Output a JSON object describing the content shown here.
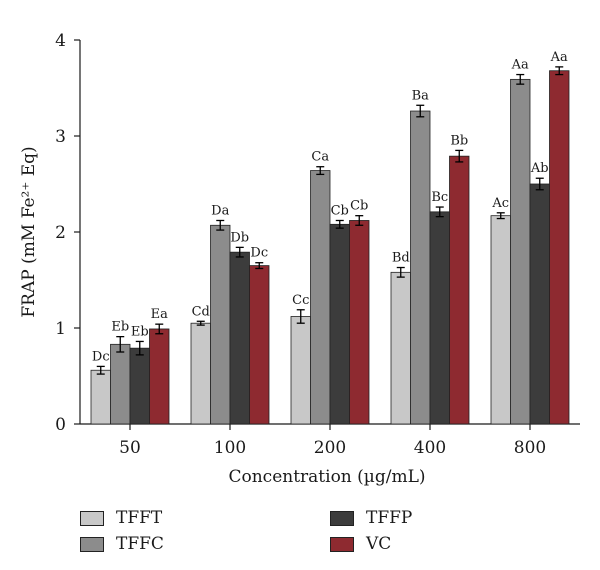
{
  "chart_data": {
    "type": "bar",
    "xlabel": "Concentration (µg/mL)",
    "ylabel": "FRAP (mM Fe²⁺ Eq)",
    "ylim": [
      0,
      4
    ],
    "yticks": [
      0,
      1,
      2,
      3,
      4
    ],
    "categories": [
      "50",
      "100",
      "200",
      "400",
      "800"
    ],
    "series": [
      {
        "name": "TFFT",
        "color": "#c8c8c8",
        "values": [
          0.56,
          1.05,
          1.12,
          1.58,
          2.17
        ],
        "errors": [
          0.04,
          0.02,
          0.07,
          0.05,
          0.03
        ],
        "labels": [
          "Dc",
          "Cd",
          "Cc",
          "Bd",
          "Ac"
        ]
      },
      {
        "name": "TFFC",
        "color": "#8c8c8c",
        "values": [
          0.83,
          2.07,
          2.64,
          3.26,
          3.59
        ],
        "errors": [
          0.08,
          0.05,
          0.04,
          0.06,
          0.05
        ],
        "labels": [
          "Eb",
          "Da",
          "Ca",
          "Ba",
          "Aa"
        ]
      },
      {
        "name": "TFFP",
        "color": "#3c3c3c",
        "values": [
          0.79,
          1.79,
          2.08,
          2.21,
          2.5
        ],
        "errors": [
          0.07,
          0.05,
          0.04,
          0.05,
          0.06
        ],
        "labels": [
          "Eb",
          "Db",
          "Cb",
          "Bc",
          "Ab"
        ]
      },
      {
        "name": "VC",
        "color": "#8e2a30",
        "values": [
          0.99,
          1.65,
          2.12,
          2.79,
          3.68
        ],
        "errors": [
          0.05,
          0.03,
          0.05,
          0.06,
          0.04
        ],
        "labels": [
          "Ea",
          "Dc",
          "Cb",
          "Bb",
          "Aa"
        ]
      }
    ],
    "legend_placement": "bottom",
    "grid": false
  }
}
